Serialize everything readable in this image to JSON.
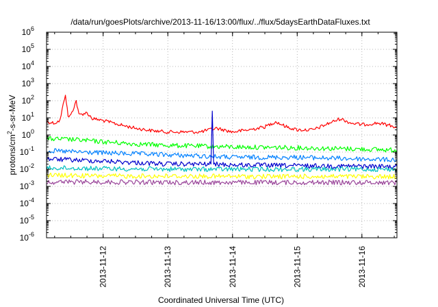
{
  "chart_data": {
    "type": "line",
    "title": "/data/run/goesPlots/archive/2013-11-16/13:00/flux/../flux/5daysEarthDataFluxes.txt",
    "xlabel": "Coordinated Universal Time (UTC)",
    "ylabel": "protons/cm2-s-sr-MeV",
    "yscale": "log",
    "ylim_exponents": [
      -6,
      6
    ],
    "y_tick_base": "10",
    "xlim": [
      "2013-11-11T03:00",
      "2013-11-16T13:00"
    ],
    "x_tick_labels": [
      "2013-11-12",
      "2013-11-13",
      "2013-11-14",
      "2013-11-15",
      "2013-11-16"
    ],
    "grid": true,
    "series": [
      {
        "color": "#ff0000",
        "points": [
          [
            "2013-11-11T03:00",
            6
          ],
          [
            "2013-11-11T06:00",
            5
          ],
          [
            "2013-11-11T08:00",
            7
          ],
          [
            "2013-11-11T10:00",
            250
          ],
          [
            "2013-11-11T11:00",
            12
          ],
          [
            "2013-11-11T12:00",
            14
          ],
          [
            "2013-11-11T14:00",
            100
          ],
          [
            "2013-11-11T15:00",
            15
          ],
          [
            "2013-11-11T18:00",
            20
          ],
          [
            "2013-11-11T20:00",
            9
          ],
          [
            "2013-11-12T00:00",
            7
          ],
          [
            "2013-11-12T06:00",
            4
          ],
          [
            "2013-11-12T12:00",
            2.5
          ],
          [
            "2013-11-12T18:00",
            1.8
          ],
          [
            "2013-11-13T00:00",
            1.5
          ],
          [
            "2013-11-13T12:00",
            1.5
          ],
          [
            "2013-11-13T18:00",
            2.5
          ],
          [
            "2013-11-14T00:00",
            1.5
          ],
          [
            "2013-11-14T06:00",
            2
          ],
          [
            "2013-11-14T12:00",
            3
          ],
          [
            "2013-11-14T16:00",
            6
          ],
          [
            "2013-11-14T20:00",
            3
          ],
          [
            "2013-11-15T00:00",
            2
          ],
          [
            "2013-11-15T06:00",
            2
          ],
          [
            "2013-11-15T12:00",
            5
          ],
          [
            "2013-11-15T16:00",
            9
          ],
          [
            "2013-11-15T20:00",
            5
          ],
          [
            "2013-11-16T00:00",
            4
          ],
          [
            "2013-11-16T06:00",
            5
          ],
          [
            "2013-11-16T13:00",
            3
          ]
        ]
      },
      {
        "color": "#00ff00",
        "points": [
          [
            "2013-11-11T03:00",
            0.6
          ],
          [
            "2013-11-11T12:00",
            0.55
          ],
          [
            "2013-11-12T00:00",
            0.4
          ],
          [
            "2013-11-12T12:00",
            0.3
          ],
          [
            "2013-11-13T00:00",
            0.25
          ],
          [
            "2013-11-14T00:00",
            0.2
          ],
          [
            "2013-11-15T00:00",
            0.18
          ],
          [
            "2013-11-16T00:00",
            0.15
          ],
          [
            "2013-11-16T13:00",
            0.13
          ]
        ]
      },
      {
        "color": "#0080ff",
        "points": [
          [
            "2013-11-11T03:00",
            0.12
          ],
          [
            "2013-11-12T00:00",
            0.09
          ],
          [
            "2013-11-13T00:00",
            0.07
          ],
          [
            "2013-11-14T00:00",
            0.05
          ],
          [
            "2013-11-15T00:00",
            0.05
          ],
          [
            "2013-11-16T00:00",
            0.04
          ],
          [
            "2013-11-16T13:00",
            0.035
          ]
        ]
      },
      {
        "color": "#0000cc",
        "points": [
          [
            "2013-11-11T03:00",
            0.04
          ],
          [
            "2013-11-12T00:00",
            0.03
          ],
          [
            "2013-11-13T00:00",
            0.02
          ],
          [
            "2013-11-13T16:00",
            0.02
          ],
          [
            "2013-11-13T16:30",
            25
          ],
          [
            "2013-11-13T17:00",
            0.02
          ],
          [
            "2013-11-14T00:00",
            0.018
          ],
          [
            "2013-11-15T00:00",
            0.016
          ],
          [
            "2013-11-16T00:00",
            0.015
          ],
          [
            "2013-11-16T13:00",
            0.014
          ]
        ]
      },
      {
        "color": "#00c0c0",
        "points": [
          [
            "2013-11-11T03:00",
            0.012
          ],
          [
            "2013-11-12T00:00",
            0.011
          ],
          [
            "2013-11-13T00:00",
            0.01
          ],
          [
            "2013-11-14T00:00",
            0.01
          ],
          [
            "2013-11-15T00:00",
            0.01
          ],
          [
            "2013-11-16T13:00",
            0.01
          ]
        ]
      },
      {
        "color": "#ffff00",
        "points": [
          [
            "2013-11-11T03:00",
            0.0045
          ],
          [
            "2013-11-12T00:00",
            0.004
          ],
          [
            "2013-11-13T00:00",
            0.004
          ],
          [
            "2013-11-14T00:00",
            0.0038
          ],
          [
            "2013-11-15T00:00",
            0.0038
          ],
          [
            "2013-11-16T13:00",
            0.0037
          ]
        ]
      },
      {
        "color": "#994499",
        "points": [
          [
            "2013-11-11T03:00",
            0.0018
          ],
          [
            "2013-11-12T00:00",
            0.0018
          ],
          [
            "2013-11-13T00:00",
            0.0017
          ],
          [
            "2013-11-14T00:00",
            0.0017
          ],
          [
            "2013-11-15T00:00",
            0.0017
          ],
          [
            "2013-11-16T13:00",
            0.0017
          ]
        ]
      }
    ]
  }
}
